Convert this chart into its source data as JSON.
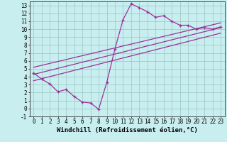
{
  "bg_color": "#c8eef0",
  "grid_color": "#a0ccc8",
  "line_color": "#993399",
  "xlabel": "Windchill (Refroidissement éolien,°C)",
  "xlim": [
    -0.5,
    23.5
  ],
  "ylim": [
    -1.0,
    13.5
  ],
  "xticks": [
    0,
    1,
    2,
    3,
    4,
    5,
    6,
    7,
    8,
    9,
    10,
    11,
    12,
    13,
    14,
    15,
    16,
    17,
    18,
    19,
    20,
    21,
    22,
    23
  ],
  "yticks": [
    -1,
    0,
    1,
    2,
    3,
    4,
    5,
    6,
    7,
    8,
    9,
    10,
    11,
    12,
    13
  ],
  "data_curve": [
    [
      0,
      4.5
    ],
    [
      1,
      3.7
    ],
    [
      2,
      3.1
    ],
    [
      3,
      2.1
    ],
    [
      4,
      2.4
    ],
    [
      5,
      1.5
    ],
    [
      6,
      0.8
    ],
    [
      7,
      0.7
    ],
    [
      8,
      -0.1
    ],
    [
      9,
      3.3
    ],
    [
      10,
      7.5
    ],
    [
      11,
      11.2
    ],
    [
      12,
      13.2
    ],
    [
      13,
      12.7
    ],
    [
      14,
      12.2
    ],
    [
      15,
      11.5
    ],
    [
      16,
      11.7
    ],
    [
      17,
      11.0
    ],
    [
      18,
      10.5
    ],
    [
      19,
      10.5
    ],
    [
      20,
      10.0
    ],
    [
      21,
      10.2
    ],
    [
      22,
      10.0
    ],
    [
      23,
      10.3
    ]
  ],
  "line1": [
    [
      0,
      3.5
    ],
    [
      23,
      9.5
    ]
  ],
  "line2": [
    [
      0,
      4.3
    ],
    [
      23,
      10.2
    ]
  ],
  "line3": [
    [
      0,
      5.2
    ],
    [
      23,
      10.8
    ]
  ],
  "tick_fontsize": 5.5,
  "label_fontsize": 6.5
}
